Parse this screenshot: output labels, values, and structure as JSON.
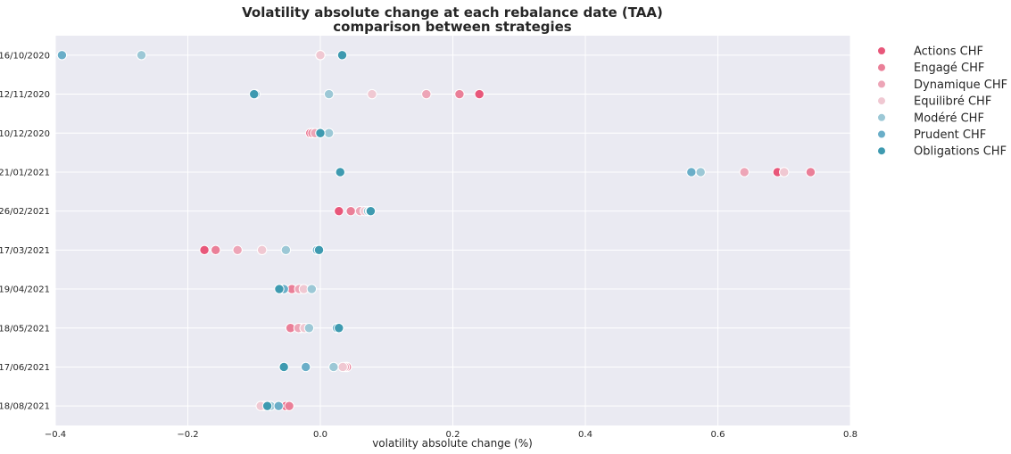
{
  "chart_data": {
    "type": "scatter",
    "title": "Volatility absolute change at each rebalance date (TAA)",
    "subtitle": "comparison between strategies",
    "xlabel": "volatility absolute change (%)",
    "ylabel": "",
    "xlim": [
      -0.4,
      0.8
    ],
    "xticks": [
      -0.4,
      -0.2,
      0.0,
      0.2,
      0.4,
      0.6,
      0.8
    ],
    "xtick_labels": [
      "−0.4",
      "−0.2",
      "0.0",
      "0.2",
      "0.4",
      "0.6",
      "0.8"
    ],
    "categories": [
      "16/10/2020",
      "12/11/2020",
      "10/12/2020",
      "21/01/2021",
      "26/02/2021",
      "17/03/2021",
      "19/04/2021",
      "18/05/2021",
      "17/06/2021",
      "18/08/2021"
    ],
    "grid": true,
    "legend_position": "outside-right",
    "series": [
      {
        "name": "Actions CHF",
        "color": "#e8577a",
        "values": [
          0.0,
          0.24,
          -0.015,
          0.69,
          0.028,
          -0.175,
          -0.058,
          -0.03,
          0.04,
          -0.052
        ]
      },
      {
        "name": "Engagé CHF",
        "color": "#ea7f98",
        "values": [
          0.0,
          0.21,
          -0.012,
          0.74,
          0.046,
          -0.158,
          -0.043,
          -0.045,
          0.04,
          -0.047
        ]
      },
      {
        "name": "Dynamique CHF",
        "color": "#eda5b7",
        "values": [
          0.0,
          0.16,
          -0.008,
          0.64,
          0.06,
          -0.125,
          -0.032,
          -0.033,
          0.037,
          -0.085
        ]
      },
      {
        "name": "Equilibré CHF",
        "color": "#f0c8d2",
        "values": [
          0.0,
          0.078,
          0.0,
          0.7,
          0.067,
          -0.088,
          -0.025,
          -0.024,
          0.034,
          -0.09
        ]
      },
      {
        "name": "Modéré CHF",
        "color": "#9cc8d6",
        "values": [
          -0.27,
          0.013,
          0.013,
          0.574,
          0.072,
          -0.052,
          -0.013,
          -0.017,
          0.02,
          -0.075
        ]
      },
      {
        "name": "Prudent CHF",
        "color": "#6aaec8",
        "values": [
          -0.39,
          -0.098,
          0.0,
          0.56,
          0.075,
          -0.005,
          -0.055,
          0.025,
          -0.022,
          -0.063
        ]
      },
      {
        "name": "Obligations CHF",
        "color": "#3e9ab0",
        "values": [
          0.033,
          -0.1,
          0.0,
          0.03,
          0.076,
          -0.002,
          -0.062,
          0.028,
          -0.055,
          -0.08
        ]
      }
    ]
  }
}
